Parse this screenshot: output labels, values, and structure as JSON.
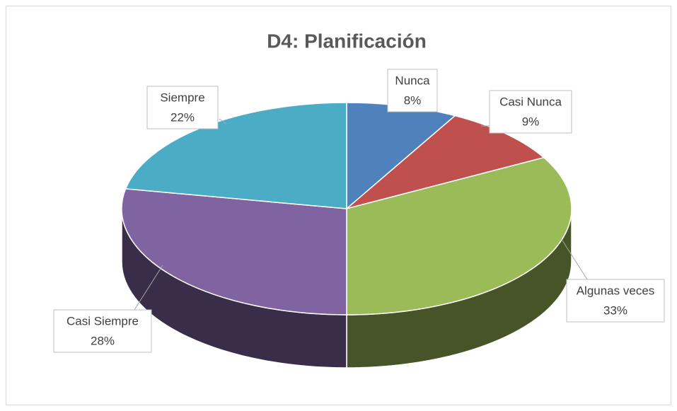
{
  "chart_data": {
    "type": "pie",
    "title": "D4: Planificación",
    "categories": [
      "Nunca",
      "Casi Nunca",
      "Algunas veces",
      "Casi Siempre",
      "Siempre"
    ],
    "values": [
      8,
      9,
      33,
      28,
      22
    ],
    "value_labels": [
      "8%",
      "9%",
      "33%",
      "28%",
      "22%"
    ],
    "colors": [
      "#4f81bd",
      "#c0504d",
      "#9bbb59",
      "#8064a2",
      "#4bacc6"
    ]
  }
}
